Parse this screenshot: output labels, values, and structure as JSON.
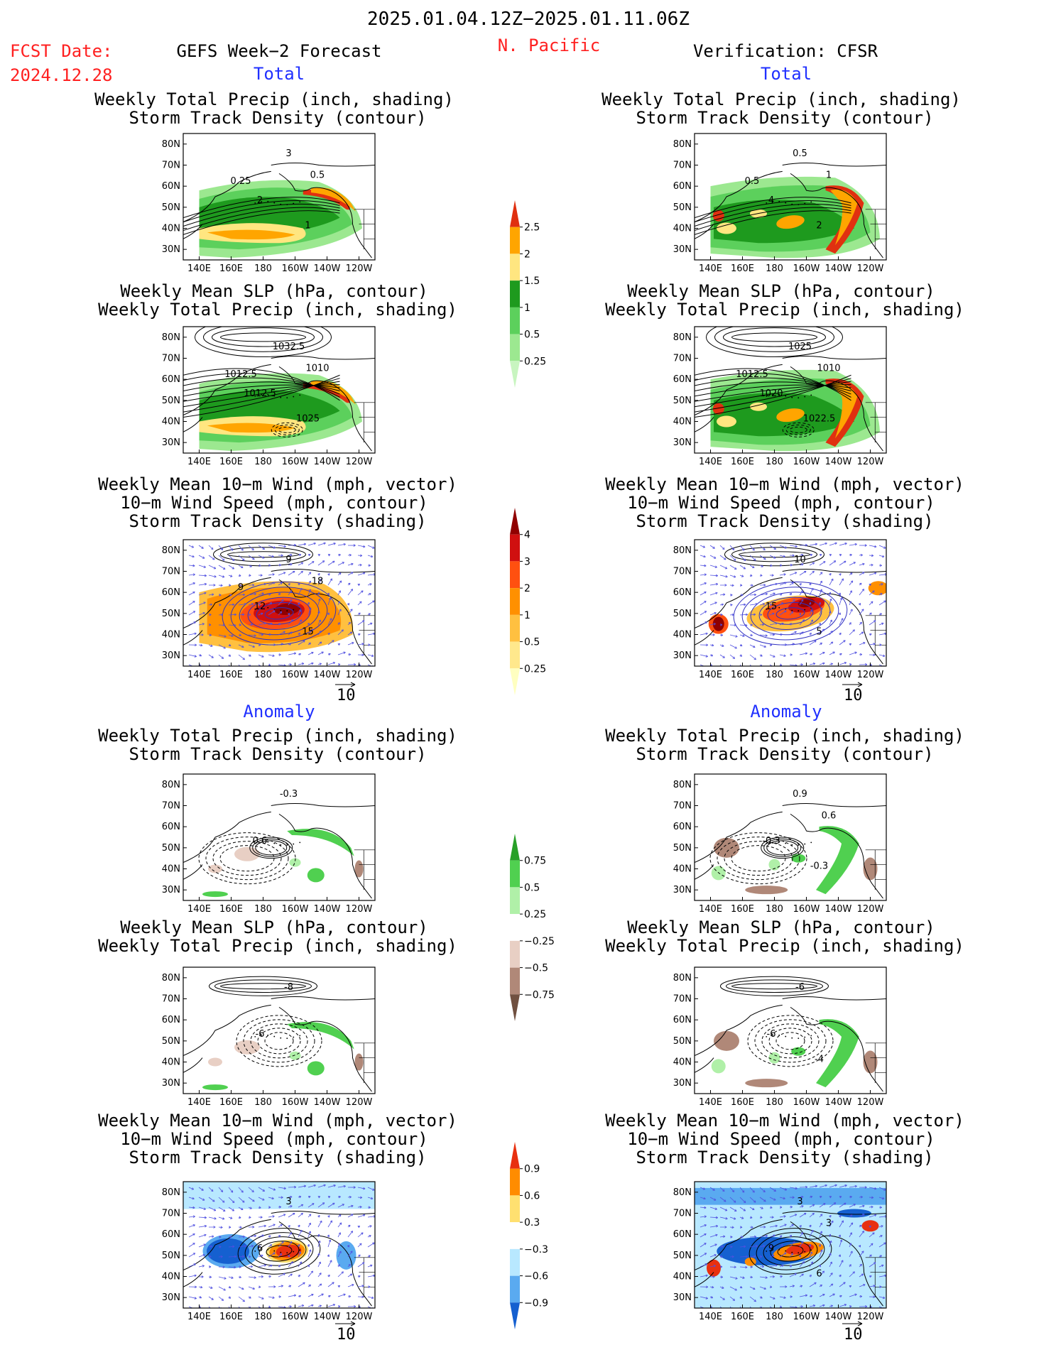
{
  "header": {
    "period": "2025.01.04.12Z−2025.01.11.06Z",
    "fcst_label": "FCST Date:",
    "fcst_date": "2024.12.28",
    "left_title": "GEFS Week−2 Forecast",
    "region": "N. Pacific",
    "right_title": "Verification: CFSR"
  },
  "sections": {
    "total": "Total",
    "anomaly": "Anomaly"
  },
  "panel_titles": {
    "precip_track": [
      "Weekly Total Precip (inch, shading)",
      "Storm Track Density (contour)"
    ],
    "slp_precip": [
      "Weekly Mean SLP (hPa, contour)",
      "Weekly Total Precip (inch, shading)"
    ],
    "wind_track": [
      "Weekly Mean 10−m Wind (mph, vector)",
      "10−m Wind Speed (mph, contour)",
      "Storm Track Density (shading)"
    ]
  },
  "vector_ref": "10",
  "chart_data": [
    {
      "type": "heatmap",
      "id": "fcst-total-precip",
      "column": "GEFS",
      "section": "Total",
      "xlabels": [
        "140E",
        "160E",
        "180",
        "160W",
        "140W",
        "120W"
      ],
      "ylabels": [
        "80N",
        "70N",
        "60N",
        "50N",
        "40N",
        "30N"
      ],
      "contour_labels": [
        "3",
        "2",
        "1",
        "0.5",
        "0.25"
      ]
    },
    {
      "type": "heatmap",
      "id": "cfsr-total-precip",
      "column": "CFSR",
      "section": "Total",
      "xlabels": [
        "140E",
        "160E",
        "180",
        "160W",
        "140W",
        "120W"
      ],
      "ylabels": [
        "80N",
        "70N",
        "60N",
        "50N",
        "40N",
        "30N"
      ],
      "contour_labels": [
        "0.5",
        "4",
        "2",
        "1",
        "0.5"
      ]
    },
    {
      "type": "heatmap",
      "id": "fcst-total-slp",
      "column": "GEFS",
      "section": "Total",
      "xlabels": [
        "140E",
        "160E",
        "180",
        "160W",
        "140W",
        "120W"
      ],
      "ylabels": [
        "80N",
        "70N",
        "60N",
        "50N",
        "40N",
        "30N"
      ],
      "contour_labels": [
        "1032.5",
        "1012.5",
        "1025",
        "1010",
        "1012.5"
      ]
    },
    {
      "type": "heatmap",
      "id": "cfsr-total-slp",
      "column": "CFSR",
      "section": "Total",
      "xlabels": [
        "140E",
        "160E",
        "180",
        "160W",
        "140W",
        "120W"
      ],
      "ylabels": [
        "80N",
        "70N",
        "60N",
        "50N",
        "40N",
        "30N"
      ],
      "contour_labels": [
        "1025",
        "1020",
        "1022.5",
        "1010",
        "1012.5"
      ]
    },
    {
      "type": "heatmap",
      "id": "fcst-total-wind",
      "column": "GEFS",
      "section": "Total",
      "xlabels": [
        "140E",
        "160E",
        "180",
        "160W",
        "140W",
        "120W"
      ],
      "ylabels": [
        "80N",
        "70N",
        "60N",
        "50N",
        "40N",
        "30N"
      ],
      "contour_labels": [
        "9",
        "12",
        "15",
        "18",
        "9"
      ]
    },
    {
      "type": "heatmap",
      "id": "cfsr-total-wind",
      "column": "CFSR",
      "section": "Total",
      "xlabels": [
        "140E",
        "160E",
        "180",
        "160W",
        "140W",
        "120W"
      ],
      "ylabels": [
        "80N",
        "70N",
        "60N",
        "50N",
        "40N",
        "30N"
      ],
      "contour_labels": [
        "10",
        "15",
        "5"
      ]
    },
    {
      "type": "heatmap",
      "id": "fcst-anom-precip",
      "column": "GEFS",
      "section": "Anomaly",
      "xlabels": [
        "140E",
        "160E",
        "180",
        "160W",
        "140W",
        "120W"
      ],
      "ylabels": [
        "80N",
        "70N",
        "60N",
        "50N",
        "40N",
        "30N"
      ],
      "contour_labels": [
        "-0.3",
        "0.6"
      ]
    },
    {
      "type": "heatmap",
      "id": "cfsr-anom-precip",
      "column": "CFSR",
      "section": "Anomaly",
      "xlabels": [
        "140E",
        "160E",
        "180",
        "160W",
        "140W",
        "120W"
      ],
      "ylabels": [
        "80N",
        "70N",
        "60N",
        "50N",
        "40N",
        "30N"
      ],
      "contour_labels": [
        "0.9",
        "-0.3",
        "-0.3",
        "0.6"
      ]
    },
    {
      "type": "heatmap",
      "id": "fcst-anom-slp",
      "column": "GEFS",
      "section": "Anomaly",
      "xlabels": [
        "140E",
        "160E",
        "180",
        "160W",
        "140W",
        "120W"
      ],
      "ylabels": [
        "80N",
        "70N",
        "60N",
        "50N",
        "40N",
        "30N"
      ],
      "contour_labels": [
        "-8",
        "-6"
      ]
    },
    {
      "type": "heatmap",
      "id": "cfsr-anom-slp",
      "column": "CFSR",
      "section": "Anomaly",
      "xlabels": [
        "140E",
        "160E",
        "180",
        "160W",
        "140W",
        "120W"
      ],
      "ylabels": [
        "80N",
        "70N",
        "60N",
        "50N",
        "40N",
        "30N"
      ],
      "contour_labels": [
        "-6",
        "-6",
        "-4"
      ]
    },
    {
      "type": "heatmap",
      "id": "fcst-anom-wind",
      "column": "GEFS",
      "section": "Anomaly",
      "xlabels": [
        "140E",
        "160E",
        "180",
        "160W",
        "140W",
        "120W"
      ],
      "ylabels": [
        "80N",
        "70N",
        "60N",
        "50N",
        "40N",
        "30N"
      ],
      "contour_labels": [
        "3",
        "6"
      ]
    },
    {
      "type": "heatmap",
      "id": "cfsr-anom-wind",
      "column": "CFSR",
      "section": "Anomaly",
      "xlabels": [
        "140E",
        "160E",
        "180",
        "160W",
        "140W",
        "120W"
      ],
      "ylabels": [
        "80N",
        "70N",
        "60N",
        "50N",
        "40N",
        "30N"
      ],
      "contour_labels": [
        "3",
        "9",
        "6",
        "3"
      ]
    }
  ],
  "colorbars": {
    "precip_total": {
      "levels": [
        "0.25",
        "0.5",
        "1",
        "1.5",
        "2",
        "2.5"
      ],
      "colors": [
        "#c8f5c0",
        "#9ce890",
        "#5cd05c",
        "#1e9a1e",
        "#ffe680",
        "#ffa500",
        "#e03010"
      ]
    },
    "track_total": {
      "levels": [
        "0.25",
        "0.5",
        "1",
        "2",
        "3",
        "4"
      ],
      "colors": [
        "#ffffc0",
        "#ffe88c",
        "#ffc040",
        "#ff9000",
        "#ff5010",
        "#d01010",
        "#900000"
      ]
    },
    "precip_anom": {
      "levels": [
        "0.75",
        "0.5",
        "0.25",
        "−0.25",
        "−0.5",
        "−0.75"
      ],
      "colors": [
        "#28a028",
        "#50d050",
        "#b0f0a8",
        "#ffffff",
        "#e8cfc4",
        "#b08878",
        "#705040"
      ]
    },
    "track_anom": {
      "levels": [
        "0.9",
        "0.6",
        "0.3",
        "−0.3",
        "−0.6",
        "−0.9"
      ],
      "colors": [
        "#e83010",
        "#ff8c00",
        "#ffe070",
        "#ffffff",
        "#b8e8ff",
        "#5aaaf0",
        "#1560d0"
      ]
    }
  }
}
